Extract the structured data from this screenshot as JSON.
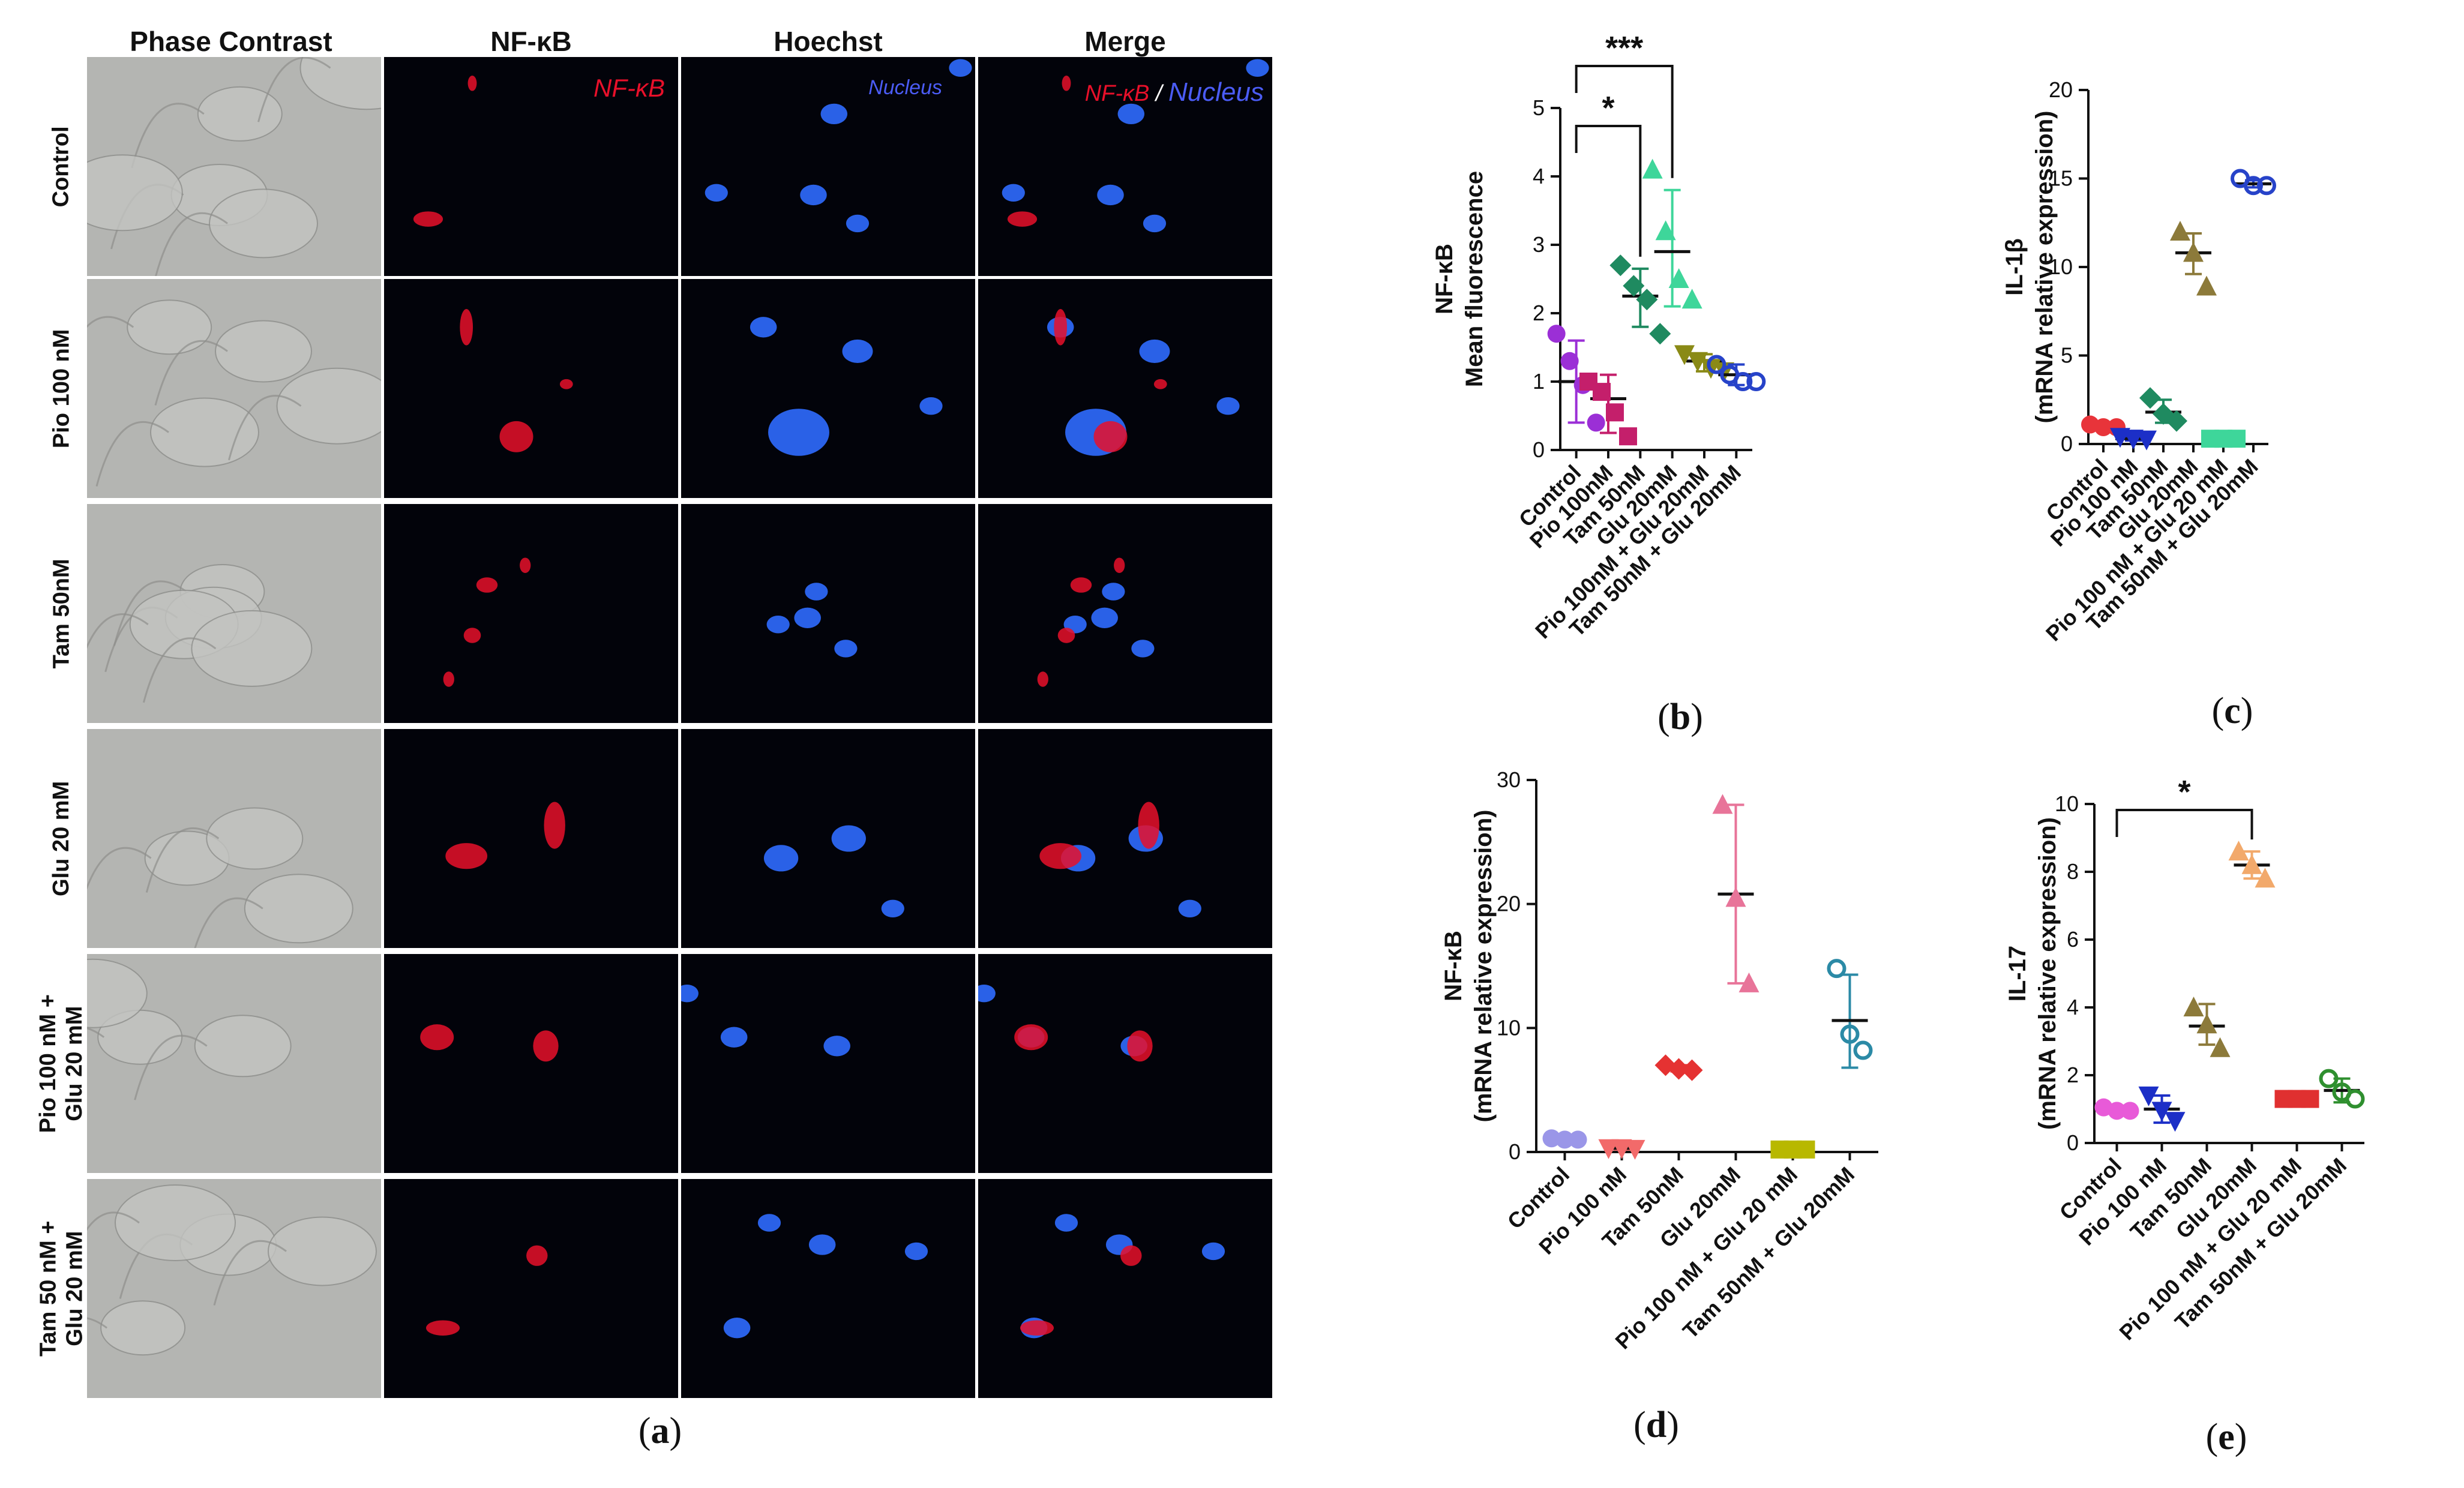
{
  "panel_a": {
    "column_headers": [
      "Phase Contrast",
      "NF-κB",
      "Hoechst",
      "Merge"
    ],
    "row_labels": [
      [
        "Control"
      ],
      [
        "Pio 100 nM"
      ],
      [
        "Tam 50nM"
      ],
      [
        "Glu 20 mM"
      ],
      [
        "Pio 100 nM +",
        "Glu 20 mM"
      ],
      [
        "Tam 50 nM +",
        "Glu 20 mM"
      ]
    ],
    "overlay": {
      "nfkb": "NF-κB",
      "nucleus": "Nucleus",
      "merge_nfkb": "NF-κB",
      "merge_sep": "/",
      "merge_nucleus": "Nucleus"
    },
    "caption": "a",
    "colors": {
      "nfkb_red": "#e8102a",
      "nucleus_blue": "#2f6bff",
      "tile_bg": "#02030a",
      "phase_gray": "#a9aaa7"
    }
  },
  "chart_data": [
    {
      "panel": "b",
      "type": "scatter",
      "ylabel_lines": [
        "NF-κB",
        "Mean fluorescence"
      ],
      "ylim": [
        0,
        5
      ],
      "yticks": [
        0,
        1,
        2,
        3,
        4,
        5
      ],
      "categories": [
        "Control",
        "Pio 100nM",
        "Tam 50nM",
        "Glu 20mM",
        "Pio 100nM + Glu 20mM",
        "Tam 50nM + Glu 20mM"
      ],
      "series": [
        {
          "points": [
            1.7,
            1.3,
            0.95,
            0.4
          ],
          "mean": 1.0,
          "sd": [
            0.4,
            1.6
          ],
          "color": "#9b2fd6",
          "marker": "circle"
        },
        {
          "points": [
            1.0,
            0.85,
            0.55,
            0.2
          ],
          "mean": 0.75,
          "sd": [
            0.25,
            1.1
          ],
          "color": "#c41f6b",
          "marker": "square"
        },
        {
          "points": [
            2.7,
            2.4,
            2.2,
            1.7
          ],
          "mean": 2.25,
          "sd": [
            1.8,
            2.65
          ],
          "color": "#1f8a60",
          "marker": "diamond"
        },
        {
          "points": [
            4.1,
            3.2,
            2.5,
            2.2
          ],
          "mean": 2.9,
          "sd": [
            2.1,
            3.8
          ],
          "color": "#3ed69a",
          "marker": "triangle"
        },
        {
          "points": [
            1.4,
            1.3,
            1.2,
            1.15
          ],
          "mean": 1.3,
          "sd": [
            1.15,
            1.4
          ],
          "color": "#8a8a16",
          "marker": "triangle-down"
        },
        {
          "points": [
            1.25,
            1.1,
            1.0,
            1.0
          ],
          "mean": 1.1,
          "sd": [
            0.95,
            1.25
          ],
          "color": "#2743c9",
          "marker": "open-circle"
        }
      ],
      "significance": [
        {
          "from": 0,
          "to": 2,
          "label": "*"
        },
        {
          "from": 0,
          "to": 3,
          "label": "***"
        }
      ]
    },
    {
      "panel": "c",
      "type": "scatter",
      "ylabel_lines": [
        "IL-1β",
        "(mRNA relative expression)"
      ],
      "ylim": [
        0,
        20
      ],
      "yticks": [
        0,
        5,
        10,
        15,
        20
      ],
      "categories": [
        "Control",
        "Pio 100 nM",
        "Tam 50nM",
        "Glu 20mM",
        "Pio 100 nM + Glu 20 mM",
        "Tam 50nM + Glu 20mM"
      ],
      "series": [
        {
          "points": [
            1.1,
            0.95,
            0.95
          ],
          "mean": 1.0,
          "sd": [
            0.9,
            1.1
          ],
          "color": "#e8343a",
          "marker": "circle"
        },
        {
          "points": [
            0.4,
            0.3,
            0.25
          ],
          "mean": 0.3,
          "sd": [
            0.2,
            0.45
          ],
          "color": "#1c2fc7",
          "marker": "triangle-down"
        },
        {
          "points": [
            2.6,
            1.7,
            1.3
          ],
          "mean": 1.8,
          "sd": [
            1.2,
            2.5
          ],
          "color": "#1f8a60",
          "marker": "diamond"
        },
        {
          "points": [
            12.0,
            10.8,
            8.9
          ],
          "mean": 10.8,
          "sd": [
            9.6,
            11.9
          ],
          "color": "#8c7a3a",
          "marker": "triangle"
        },
        {
          "points": [
            0.3,
            0.3,
            0.3
          ],
          "mean": 0.3,
          "sd": [
            0.25,
            0.35
          ],
          "color": "#3ed69a",
          "marker": "square"
        },
        {
          "points": [
            15.0,
            14.6,
            14.6
          ],
          "mean": 14.7,
          "sd": [
            14.5,
            14.9
          ],
          "color": "#2743c9",
          "marker": "open-circle"
        }
      ],
      "significance": []
    },
    {
      "panel": "d",
      "type": "scatter",
      "ylabel_lines": [
        "NF-κB",
        "(mRNA relative expression)"
      ],
      "ylim": [
        0,
        30
      ],
      "yticks": [
        0,
        10,
        20,
        30
      ],
      "categories": [
        "Control",
        "Pio 100 nM",
        "Tam 50nM",
        "Glu 20mM",
        "Pio 100 nM + Glu 20 mM",
        "Tam 50nM + Glu 20mM"
      ],
      "series": [
        {
          "points": [
            1.1,
            1.0,
            1.0
          ],
          "mean": 1.0,
          "sd": [
            0.9,
            1.1
          ],
          "color": "#9a96e8",
          "marker": "circle"
        },
        {
          "points": [
            0.3,
            0.3,
            0.25
          ],
          "mean": 0.3,
          "sd": [
            0.2,
            0.4
          ],
          "color": "#f26a6a",
          "marker": "triangle-down"
        },
        {
          "points": [
            7.0,
            6.7,
            6.6
          ],
          "mean": 6.8,
          "sd": [
            6.5,
            7.0
          ],
          "color": "#e53232",
          "marker": "diamond"
        },
        {
          "points": [
            28.0,
            20.5,
            13.6
          ],
          "mean": 20.8,
          "sd": [
            13.6,
            28.0
          ],
          "color": "#e87499",
          "marker": "triangle"
        },
        {
          "points": [
            0.2,
            0.2,
            0.2
          ],
          "mean": 0.2,
          "sd": [
            0.15,
            0.25
          ],
          "color": "#b8b800",
          "marker": "square"
        },
        {
          "points": [
            14.8,
            9.5,
            8.2
          ],
          "mean": 10.6,
          "sd": [
            6.8,
            14.3
          ],
          "color": "#2b8aa6",
          "marker": "open-circle"
        }
      ],
      "significance": []
    },
    {
      "panel": "e",
      "type": "scatter",
      "ylabel_lines": [
        "IL-17",
        "(mRNA relative expression)"
      ],
      "ylim": [
        0,
        10
      ],
      "yticks": [
        0,
        2,
        4,
        6,
        8,
        10
      ],
      "categories": [
        "Control",
        "Pio 100 nM",
        "Tam 50nM",
        "Glu 20mM",
        "Pio 100 nM + Glu 20 mM",
        "Tam 50nM + Glu 20mM"
      ],
      "series": [
        {
          "points": [
            1.05,
            0.95,
            0.95
          ],
          "mean": 1.0,
          "sd": [
            0.9,
            1.1
          ],
          "color": "#e85ad8",
          "marker": "circle"
        },
        {
          "points": [
            1.4,
            0.95,
            0.65
          ],
          "mean": 1.0,
          "sd": [
            0.6,
            1.4
          ],
          "color": "#1c2fc7",
          "marker": "triangle-down"
        },
        {
          "points": [
            4.0,
            3.5,
            2.8
          ],
          "mean": 3.45,
          "sd": [
            2.9,
            4.1
          ],
          "color": "#8c7a3a",
          "marker": "triangle"
        },
        {
          "points": [
            8.6,
            8.2,
            7.8
          ],
          "mean": 8.2,
          "sd": [
            7.8,
            8.6
          ],
          "color": "#f2a96b",
          "marker": "triangle"
        },
        {
          "points": [
            1.3,
            1.3,
            1.3
          ],
          "mean": 1.3,
          "sd": [
            1.2,
            1.4
          ],
          "color": "#e03030",
          "marker": "square"
        },
        {
          "points": [
            1.9,
            1.5,
            1.3
          ],
          "mean": 1.55,
          "sd": [
            1.2,
            1.9
          ],
          "color": "#2f8f2f",
          "marker": "open-circle"
        }
      ],
      "significance": [
        {
          "from": 0,
          "to": 3,
          "label": "*"
        }
      ]
    }
  ]
}
